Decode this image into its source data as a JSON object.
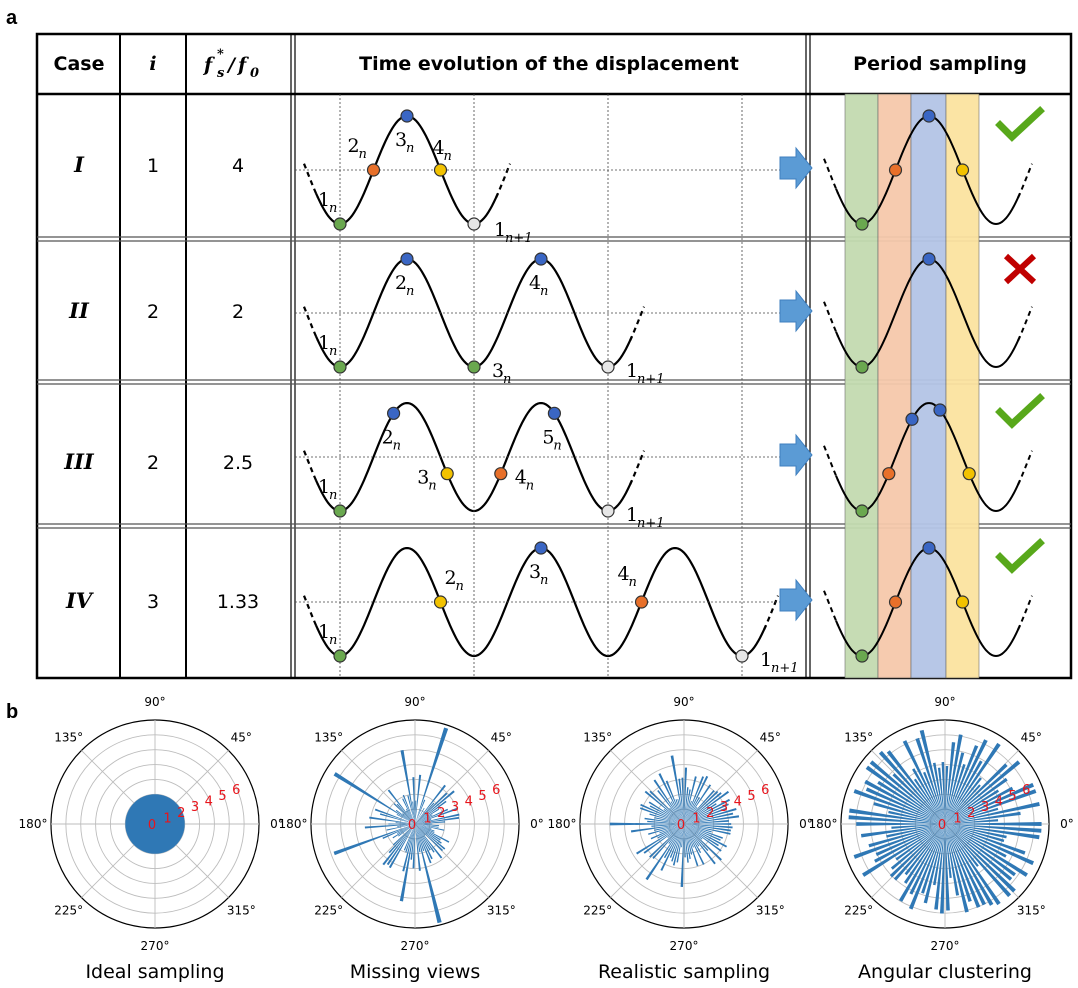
{
  "panel_a": {
    "letter": "a",
    "headers": {
      "case": "Case",
      "i": "i",
      "ratio_num": "f",
      "ratio_num_sub": "s",
      "ratio_num_sup": "*",
      "ratio_den": "f",
      "ratio_den_sub": "0",
      "time_evolution": "Time evolution of the displacement",
      "period_sampling": "Period sampling"
    },
    "rows": [
      {
        "case": "I",
        "i": "1",
        "ratio": "4",
        "verdict": "check",
        "points": [
          {
            "n": "1",
            "s": "n",
            "c": "green"
          },
          {
            "n": "2",
            "s": "n",
            "c": "orange"
          },
          {
            "n": "3",
            "s": "n",
            "c": "blue"
          },
          {
            "n": "4",
            "s": "n",
            "c": "yellow"
          },
          {
            "n": "1",
            "s": "n+1",
            "c": "white"
          }
        ]
      },
      {
        "case": "II",
        "i": "2",
        "ratio": "2",
        "verdict": "cross",
        "points": [
          {
            "n": "1",
            "s": "n",
            "c": "green"
          },
          {
            "n": "2",
            "s": "n",
            "c": "blue"
          },
          {
            "n": "3",
            "s": "n",
            "c": "green"
          },
          {
            "n": "4",
            "s": "n",
            "c": "blue"
          },
          {
            "n": "1",
            "s": "n+1",
            "c": "white"
          }
        ]
      },
      {
        "case": "III",
        "i": "2",
        "ratio": "2.5",
        "verdict": "check",
        "points": [
          {
            "n": "1",
            "s": "n",
            "c": "green"
          },
          {
            "n": "2",
            "s": "n",
            "c": "blue"
          },
          {
            "n": "3",
            "s": "n",
            "c": "yellow"
          },
          {
            "n": "4",
            "s": "n",
            "c": "orange"
          },
          {
            "n": "5",
            "s": "n",
            "c": "blue"
          },
          {
            "n": "1",
            "s": "n+1",
            "c": "white"
          }
        ]
      },
      {
        "case": "IV",
        "i": "3",
        "ratio": "1.33",
        "verdict": "check",
        "points": [
          {
            "n": "1",
            "s": "n",
            "c": "green"
          },
          {
            "n": "2",
            "s": "n",
            "c": "yellow"
          },
          {
            "n": "3",
            "s": "n",
            "c": "blue"
          },
          {
            "n": "4",
            "s": "n",
            "c": "orange"
          },
          {
            "n": "1",
            "s": "n+1",
            "c": "white"
          }
        ]
      }
    ],
    "colors": {
      "green": "#6aa84f",
      "orange": "#e8702a",
      "blue": "#3a66c4",
      "yellow": "#f2c200",
      "white": "#e6e6e6",
      "band_green": "#c3dbb0",
      "band_orange": "#f6c9ab",
      "band_blue": "#b4c5e6",
      "band_yellow": "#fbe3a0",
      "arrow": "#5b9bd5",
      "check": "#58a81b",
      "cross": "#c00000"
    }
  },
  "panel_b": {
    "letter": "b",
    "angle_labels": [
      "90°",
      "45°",
      "0°",
      "315°",
      "270°",
      "225°",
      "180°",
      "135°"
    ],
    "radial_labels": [
      "0",
      "1",
      "2",
      "3",
      "4",
      "5",
      "6"
    ],
    "bar_color": "#2f78b5",
    "plots": [
      {
        "caption": "Ideal sampling"
      },
      {
        "caption": "Missing views"
      },
      {
        "caption": "Realistic sampling"
      },
      {
        "caption": "Angular clustering"
      }
    ]
  }
}
